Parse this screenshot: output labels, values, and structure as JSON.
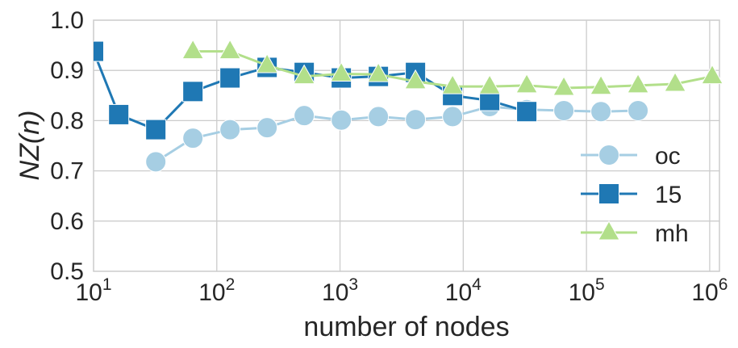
{
  "chart_data": {
    "type": "line",
    "xlabel": "number of nodes",
    "ylabel_html": "NZ(n)",
    "x_scale": "log",
    "xlim": [
      10,
      1200000
    ],
    "ylim": [
      0.5,
      1.0
    ],
    "x_ticks": [
      {
        "value": 10,
        "base": "10",
        "exp": "1"
      },
      {
        "value": 100,
        "base": "10",
        "exp": "2"
      },
      {
        "value": 1000,
        "base": "10",
        "exp": "3"
      },
      {
        "value": 10000,
        "base": "10",
        "exp": "4"
      },
      {
        "value": 100000,
        "base": "10",
        "exp": "5"
      },
      {
        "value": 1000000,
        "base": "10",
        "exp": "6"
      }
    ],
    "y_ticks": [
      "0.5",
      "0.6",
      "0.7",
      "0.8",
      "0.9",
      "1.0"
    ],
    "grid": true,
    "legend_position": "bottom-right",
    "series": [
      {
        "name": "oc",
        "color": "#a6cee3",
        "marker": "circle",
        "x": [
          32,
          64,
          128,
          256,
          512,
          1024,
          2048,
          4096,
          8192,
          16384,
          32768,
          65536,
          131072,
          262144
        ],
        "y": [
          0.718,
          0.765,
          0.782,
          0.786,
          0.81,
          0.801,
          0.808,
          0.802,
          0.808,
          0.828,
          0.822,
          0.82,
          0.818,
          0.82
        ]
      },
      {
        "name": "15",
        "color": "#1f78b4",
        "marker": "square",
        "x": [
          10,
          16,
          32,
          64,
          128,
          256,
          512,
          1024,
          2048,
          4096,
          8192,
          16384,
          32768
        ],
        "y": [
          0.938,
          0.812,
          0.782,
          0.858,
          0.885,
          0.906,
          0.896,
          0.885,
          0.888,
          0.896,
          0.85,
          0.84,
          0.818
        ]
      },
      {
        "name": "mh",
        "color": "#b2df8a",
        "marker": "triangle",
        "x": [
          64,
          128,
          256,
          512,
          1024,
          2048,
          4096,
          8192,
          16384,
          32768,
          65536,
          131072,
          262144,
          524288,
          1048576
        ],
        "y": [
          0.938,
          0.938,
          0.91,
          0.888,
          0.893,
          0.892,
          0.878,
          0.868,
          0.868,
          0.87,
          0.865,
          0.867,
          0.87,
          0.873,
          0.888
        ]
      }
    ]
  }
}
